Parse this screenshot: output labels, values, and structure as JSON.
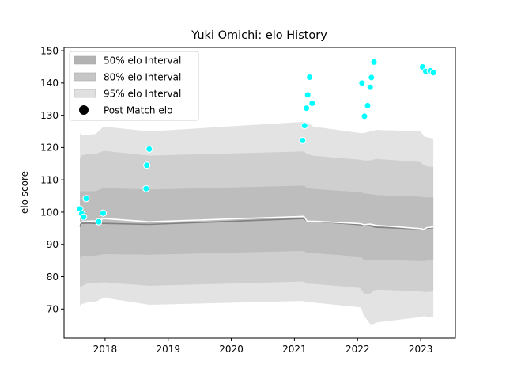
{
  "chart_data": {
    "type": "line",
    "title": "Yuki Omichi: elo History",
    "xlabel": "",
    "ylabel": "elo score",
    "xlim": [
      2017.35,
      2023.55
    ],
    "ylim": [
      61,
      151
    ],
    "x_ticks": [
      2018,
      2019,
      2020,
      2021,
      2022,
      2023
    ],
    "x_tick_labels": [
      "2018",
      "2019",
      "2020",
      "2021",
      "2022",
      "2023"
    ],
    "y_ticks": [
      70,
      80,
      90,
      100,
      110,
      120,
      130,
      140,
      150
    ],
    "y_tick_labels": [
      "70",
      "80",
      "90",
      "100",
      "110",
      "120",
      "130",
      "140",
      "150"
    ],
    "legend_position": "top-left",
    "grid": false,
    "colors": {
      "band95": "#e3e3e3",
      "band80": "#cfcfcf",
      "band50": "#bdbdbd",
      "mean_line": "#808080",
      "post_line": "#ffffff",
      "points": "#00ffff"
    },
    "legend": [
      {
        "label": "50% elo Interval",
        "kind": "band50"
      },
      {
        "label": "80% elo Interval",
        "kind": "band80"
      },
      {
        "label": "95% elo Interval",
        "kind": "band95"
      },
      {
        "label": "Post Match elo",
        "kind": "marker"
      }
    ],
    "bands": {
      "x": [
        2017.6,
        2017.62,
        2017.72,
        2017.85,
        2017.98,
        2018.7,
        2021.15,
        2021.2,
        2021.3,
        2022.05,
        2022.1,
        2022.2,
        2022.25,
        2022.3,
        2023.0,
        2023.05,
        2023.1,
        2023.2
      ],
      "mean": [
        95.5,
        96.5,
        96.6,
        96.5,
        96.5,
        96.2,
        98.0,
        97.2,
        97.2,
        96.1,
        95.8,
        95.8,
        95.5,
        95.3,
        94.8,
        94.8,
        95.0,
        95.2
      ],
      "post": [
        96.5,
        97.0,
        97.2,
        97.3,
        98.0,
        97.0,
        98.7,
        97.2,
        97.2,
        96.4,
        96.1,
        96.3,
        96.1,
        95.9,
        94.9,
        94.7,
        95.2,
        95.4
      ],
      "band50_low": [
        86.0,
        86.5,
        86.5,
        86.5,
        87.0,
        86.8,
        88.0,
        87.3,
        87.3,
        86.2,
        85.2,
        85.2,
        85.3,
        85.3,
        84.8,
        84.8,
        85.0,
        85.2
      ],
      "band50_high": [
        106.0,
        106.5,
        106.5,
        106.5,
        107.5,
        107.0,
        108.2,
        107.5,
        107.2,
        106.2,
        105.8,
        105.6,
        105.5,
        105.3,
        104.8,
        104.6,
        104.6,
        104.6
      ],
      "band80_low": [
        76.5,
        77.0,
        78.0,
        78.0,
        78.3,
        77.2,
        78.5,
        77.8,
        77.8,
        76.5,
        74.8,
        74.8,
        75.6,
        76.0,
        75.5,
        75.3,
        75.3,
        75.5
      ],
      "band80_high": [
        116.5,
        117.5,
        118.0,
        118.0,
        119.0,
        117.5,
        118.8,
        118.0,
        117.5,
        116.2,
        116.0,
        116.0,
        116.3,
        116.5,
        115.5,
        114.5,
        114.2,
        114.0
      ],
      "band95_low": [
        71.0,
        71.5,
        72.0,
        72.2,
        73.5,
        71.3,
        72.5,
        72.0,
        72.0,
        70.5,
        68.0,
        65.3,
        65.3,
        65.8,
        67.5,
        67.8,
        67.5,
        67.5
      ],
      "band95_high": [
        124.5,
        124.0,
        124.0,
        124.2,
        126.5,
        125.0,
        128.0,
        127.8,
        126.5,
        124.5,
        124.5,
        125.0,
        125.2,
        125.5,
        125.0,
        123.5,
        123.2,
        122.8
      ]
    },
    "series": [
      {
        "name": "Post Match elo",
        "points": [
          {
            "x": 2017.6,
            "y": 101.0
          },
          {
            "x": 2017.63,
            "y": 99.5
          },
          {
            "x": 2017.66,
            "y": 98.5
          },
          {
            "x": 2017.7,
            "y": 104.2
          },
          {
            "x": 2017.9,
            "y": 97.0
          },
          {
            "x": 2017.97,
            "y": 99.7
          },
          {
            "x": 2018.65,
            "y": 107.3
          },
          {
            "x": 2018.66,
            "y": 114.5
          },
          {
            "x": 2018.7,
            "y": 119.5
          },
          {
            "x": 2021.13,
            "y": 122.2
          },
          {
            "x": 2021.16,
            "y": 126.8
          },
          {
            "x": 2021.19,
            "y": 132.2
          },
          {
            "x": 2021.21,
            "y": 136.3
          },
          {
            "x": 2021.24,
            "y": 141.8
          },
          {
            "x": 2021.28,
            "y": 133.7
          },
          {
            "x": 2022.07,
            "y": 140.0
          },
          {
            "x": 2022.11,
            "y": 129.7
          },
          {
            "x": 2022.16,
            "y": 133.0
          },
          {
            "x": 2022.2,
            "y": 138.7
          },
          {
            "x": 2022.22,
            "y": 141.7
          },
          {
            "x": 2022.26,
            "y": 146.5
          },
          {
            "x": 2023.03,
            "y": 145.0
          },
          {
            "x": 2023.08,
            "y": 143.6
          },
          {
            "x": 2023.15,
            "y": 143.8
          },
          {
            "x": 2023.2,
            "y": 143.2
          }
        ]
      }
    ]
  }
}
